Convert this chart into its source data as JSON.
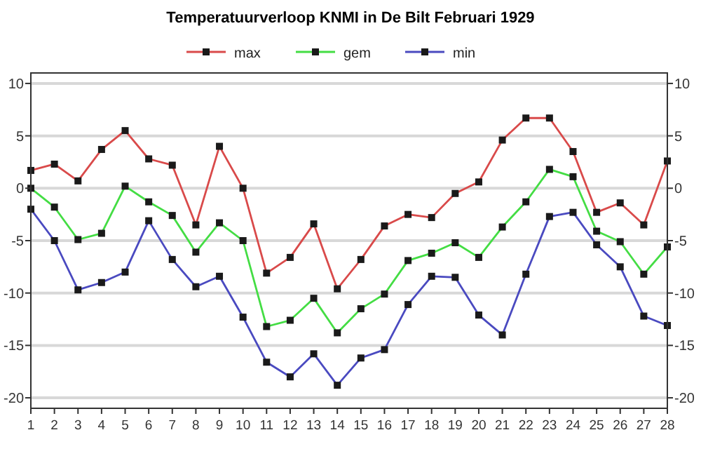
{
  "chart_data": {
    "type": "line",
    "title": "Temperatuurverloop KNMI in De Bilt Februari 1929",
    "x": [
      1,
      2,
      3,
      4,
      5,
      6,
      7,
      8,
      9,
      10,
      11,
      12,
      13,
      14,
      15,
      16,
      17,
      18,
      19,
      20,
      21,
      22,
      23,
      24,
      25,
      26,
      27,
      28
    ],
    "xlim": [
      1,
      28
    ],
    "xticks": [
      1,
      2,
      3,
      4,
      5,
      6,
      7,
      8,
      9,
      10,
      11,
      12,
      13,
      14,
      15,
      16,
      17,
      18,
      19,
      20,
      21,
      22,
      23,
      24,
      25,
      26,
      27,
      28
    ],
    "ylim": [
      -21,
      11
    ],
    "yticks": [
      -20,
      -15,
      -10,
      -5,
      0,
      5,
      10
    ],
    "y2lim": [
      -21,
      11
    ],
    "y2ticks": [
      -20,
      -15,
      -10,
      -5,
      0,
      5,
      10
    ],
    "grid": "y",
    "legend": "top",
    "marker": "square",
    "line_style": "solid",
    "series": [
      {
        "name": "max",
        "color": "#d94a4a",
        "values": [
          1.7,
          2.3,
          0.7,
          3.7,
          5.5,
          2.8,
          2.2,
          -3.5,
          4,
          0,
          -8.1,
          -6.6,
          -3.4,
          -9.6,
          -6.8,
          -3.6,
          -2.5,
          -2.8,
          -0.5,
          0.6,
          4.6,
          6.7,
          6.7,
          3.5,
          -2.3,
          -1.4,
          -3.5,
          2.6
        ]
      },
      {
        "name": "gem",
        "color": "#44dd44",
        "values": [
          0,
          -1.8,
          -4.9,
          -4.3,
          0.2,
          -1.3,
          -2.6,
          -6.1,
          -3.3,
          -5,
          -13.2,
          -12.6,
          -10.5,
          -13.8,
          -11.5,
          -10.1,
          -6.9,
          -6.2,
          -5.2,
          -6.6,
          -3.7,
          -1.3,
          1.8,
          1.1,
          -4.1,
          -5.1,
          -8.2,
          -5.6
        ]
      },
      {
        "name": "min",
        "color": "#4a4ac0",
        "values": [
          -2,
          -5,
          -9.7,
          -9,
          -8,
          -3.1,
          -6.8,
          -9.4,
          -8.4,
          -12.3,
          -16.6,
          -18,
          -15.8,
          -18.8,
          -16.2,
          -15.4,
          -11.1,
          -8.4,
          -8.5,
          -12.1,
          -14,
          -8.2,
          -2.7,
          -2.3,
          -5.4,
          -7.5,
          -12.2,
          -13.1
        ]
      }
    ]
  }
}
